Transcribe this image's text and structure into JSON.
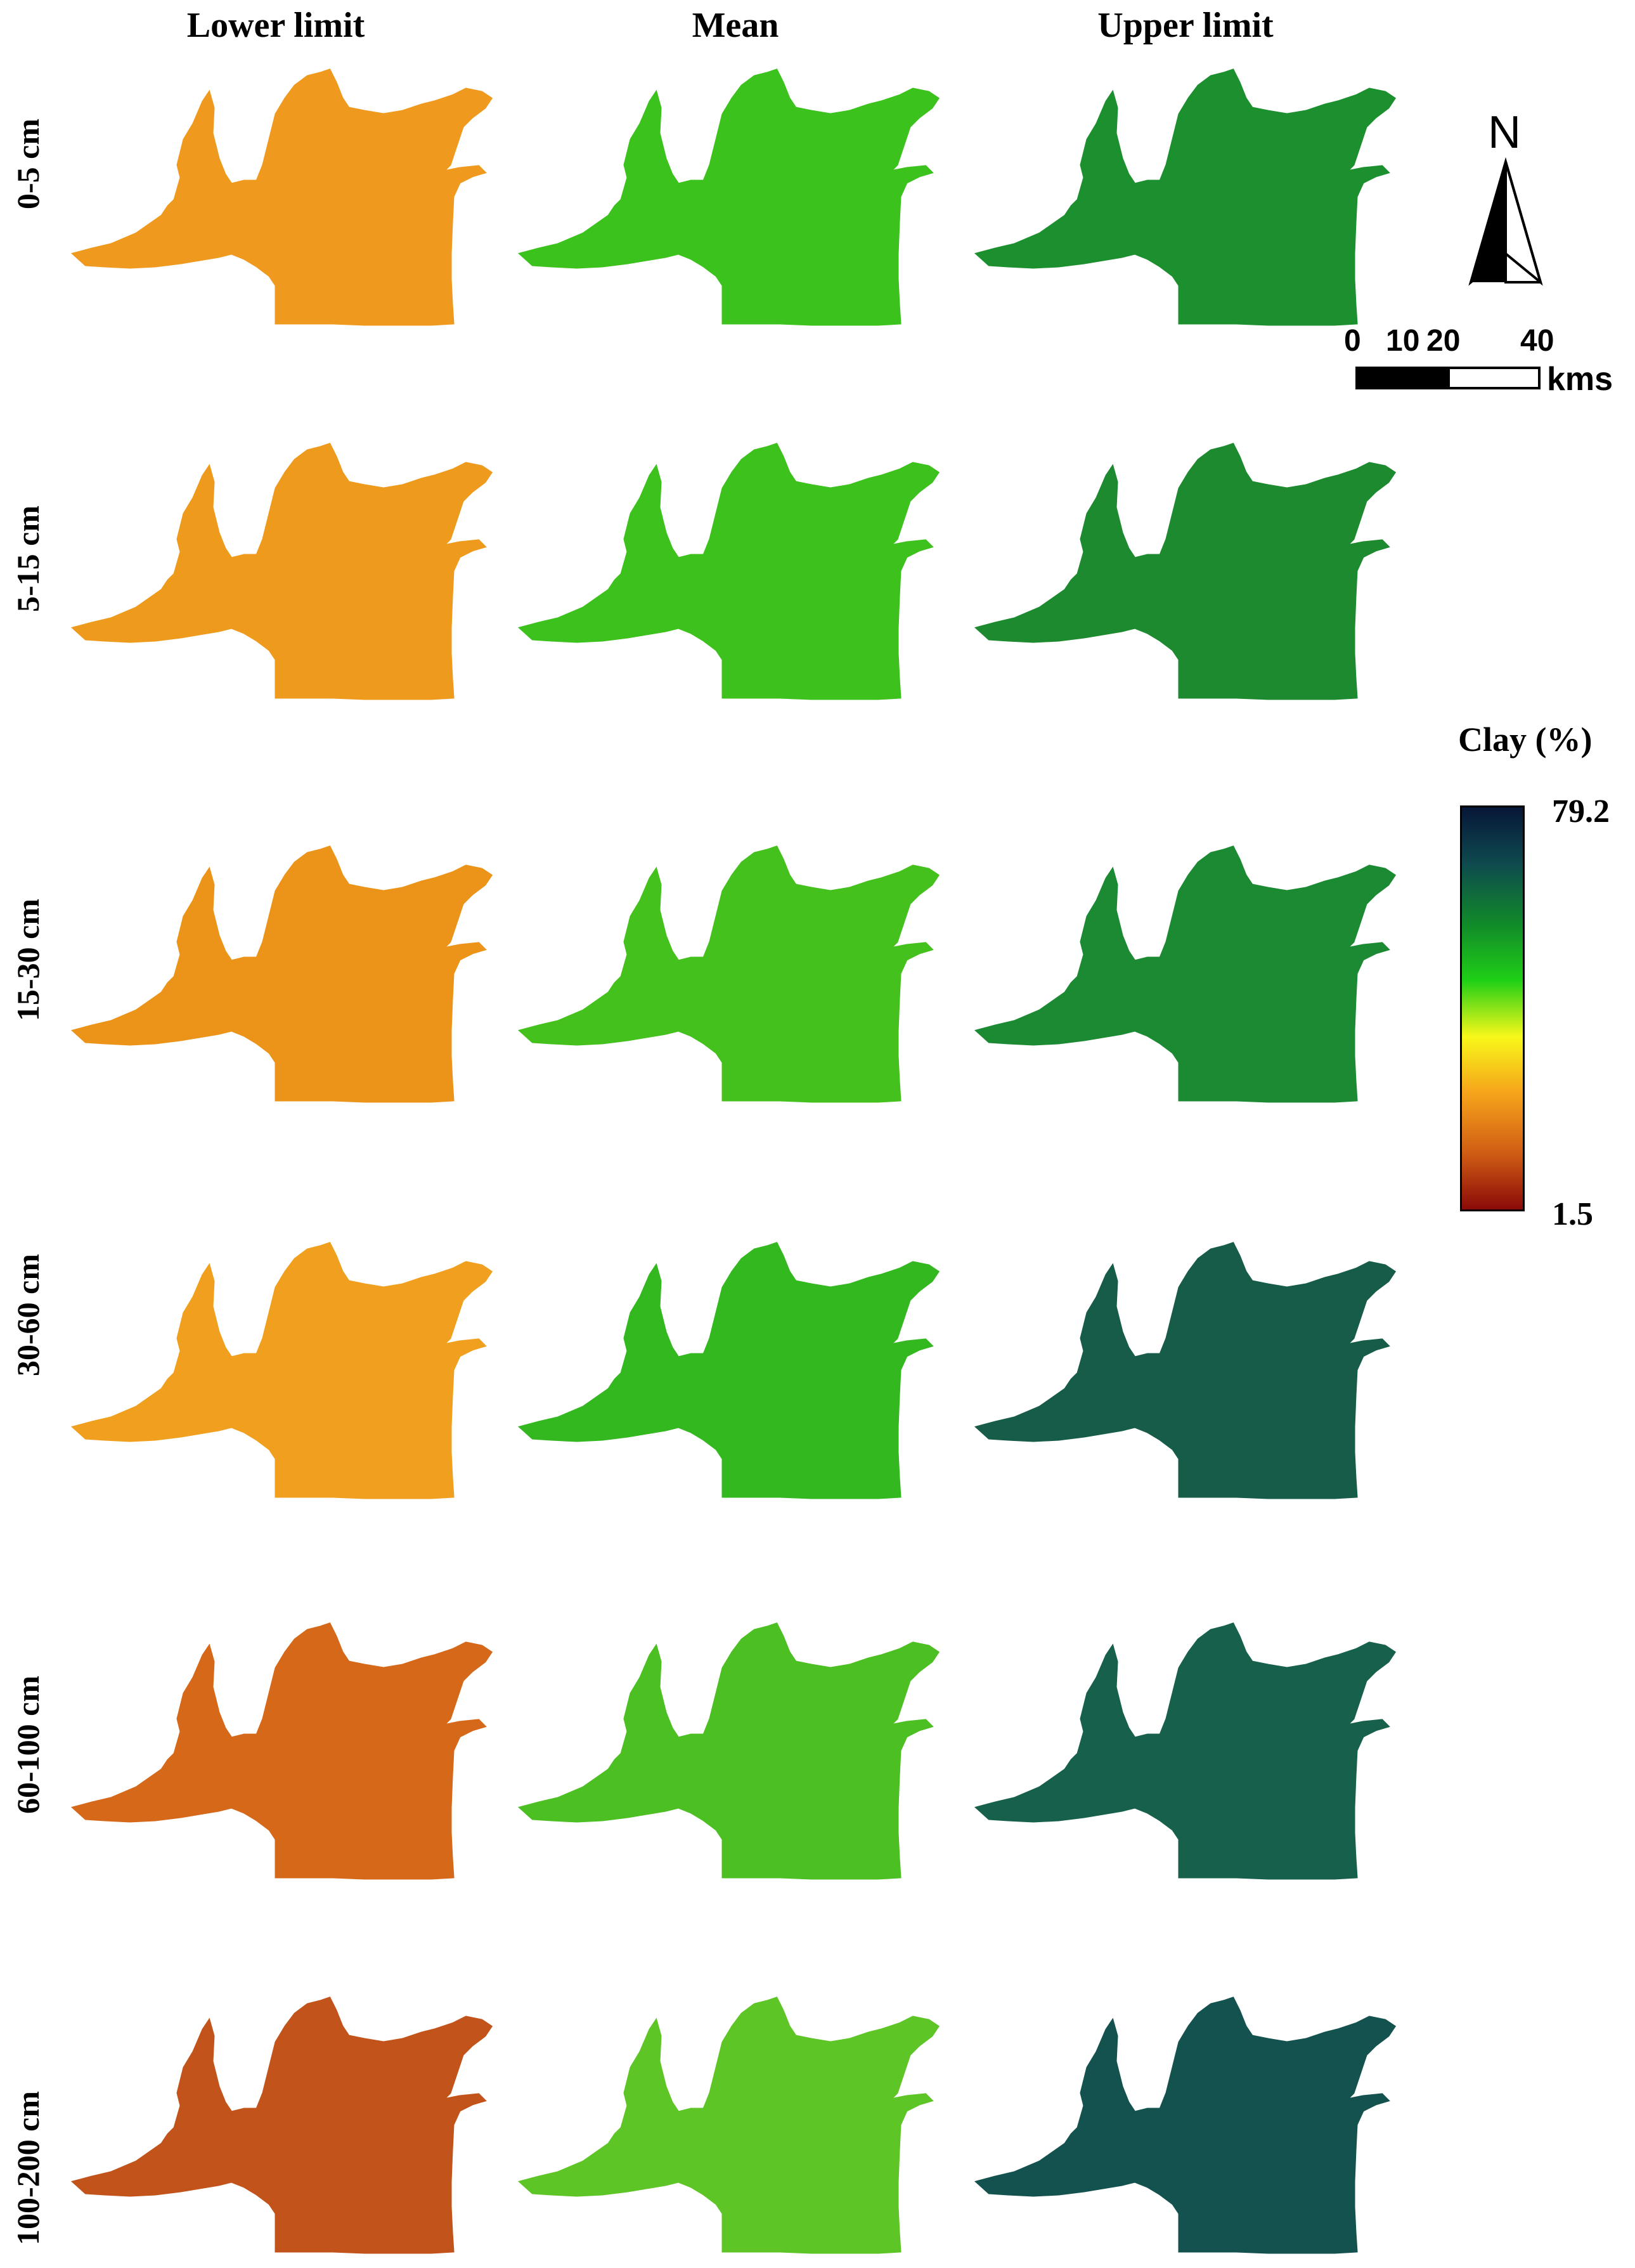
{
  "columns": [
    "Lower limit",
    "Mean",
    "Upper limit"
  ],
  "rows": [
    "0-5 cm",
    "5-15 cm",
    "15-30 cm",
    "30-60 cm",
    "60-100 cm",
    "100-200 cm"
  ],
  "map_colors": [
    [
      "#ef9a1e",
      "#3cc21c",
      "#1c8f2e"
    ],
    [
      "#ee9a1c",
      "#3dc11d",
      "#1d8a2f"
    ],
    [
      "#ec9419",
      "#44c11d",
      "#1b8a33"
    ],
    [
      "#f0a01e",
      "#33b81f",
      "#165c49"
    ],
    [
      "#d6681a",
      "#4cbf22",
      "#16604c"
    ],
    [
      "#c2531a",
      "#5ec526",
      "#14524f"
    ]
  ],
  "north": {
    "letter": "N"
  },
  "scale_bar": {
    "ticks": [
      "0",
      "10",
      "20",
      "40"
    ],
    "unit": "kms"
  },
  "legend": {
    "title": "Clay (%)",
    "max": "79.2",
    "min": "1.5",
    "colors": [
      "#071638",
      "#0e4a4e",
      "#118a2a",
      "#1fcf16",
      "#f8f81a",
      "#f6a41a",
      "#d05d14",
      "#8a0a08"
    ]
  }
}
